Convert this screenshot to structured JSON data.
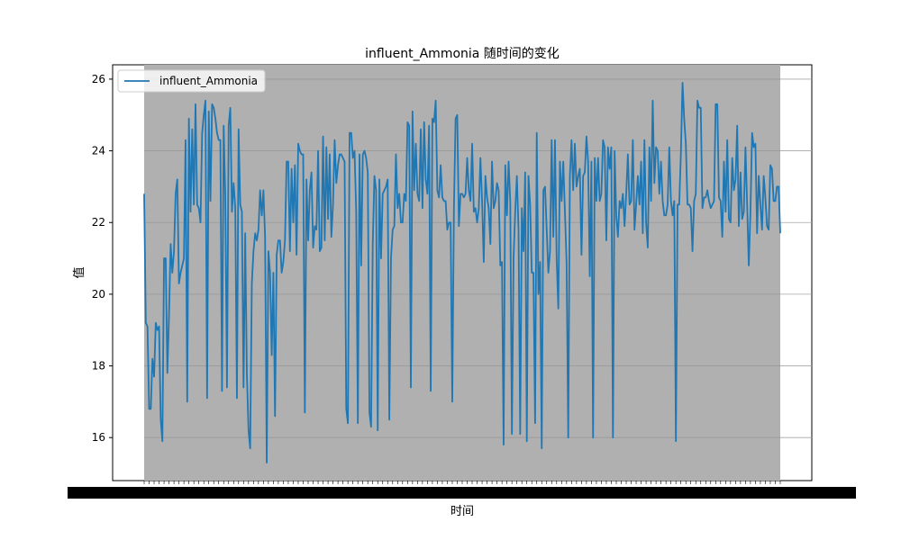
{
  "chart_data": {
    "type": "line",
    "title": "influent_Ammonia 随时间的变化",
    "xlabel": "时间",
    "ylabel": "值",
    "ylim": [
      14.8,
      26.4
    ],
    "yticks": [
      16,
      18,
      20,
      22,
      24,
      26
    ],
    "grid": true,
    "legend": {
      "placement": "top-left",
      "entries": [
        "influent_Ammonia"
      ]
    },
    "colors": {
      "line": "#1f77b4",
      "plot_bg": "#b0b0b0",
      "grid": "#ffffff"
    },
    "series": [
      {
        "name": "influent_Ammonia",
        "values": [
          22.8,
          19.2,
          19.1,
          16.8,
          16.8,
          18.2,
          17.7,
          19.2,
          19.0,
          19.1,
          16.5,
          15.9,
          21.0,
          21.0,
          17.8,
          19.4,
          21.4,
          20.6,
          21.2,
          22.8,
          23.2,
          20.3,
          20.6,
          20.8,
          21.0,
          24.3,
          17.0,
          24.9,
          22.3,
          24.6,
          22.5,
          25.3,
          22.5,
          22.4,
          22.0,
          24.5,
          25.0,
          25.4,
          17.1,
          25.1,
          22.6,
          25.3,
          25.2,
          24.9,
          24.5,
          24.3,
          24.3,
          17.3,
          24.7,
          22.7,
          17.4,
          24.7,
          25.2,
          22.3,
          23.1,
          22.4,
          17.1,
          24.6,
          22.5,
          22.3,
          17.4,
          21.7,
          17.8,
          16.2,
          15.7,
          20.3,
          21.2,
          21.7,
          21.5,
          21.8,
          22.9,
          22.2,
          22.9,
          21.6,
          15.3,
          21.2,
          20.6,
          18.3,
          20.6,
          16.6,
          21.1,
          21.5,
          21.5,
          20.6,
          20.9,
          21.5,
          23.7,
          23.7,
          21.2,
          23.5,
          22.0,
          23.6,
          21.1,
          24.2,
          24.0,
          23.9,
          23.9,
          16.7,
          23.2,
          21.5,
          22.9,
          23.4,
          21.3,
          21.9,
          21.8,
          24.0,
          21.2,
          21.3,
          24.4,
          21.5,
          24.1,
          22.1,
          23.9,
          21.6,
          22.5,
          24.3,
          23.1,
          23.6,
          23.9,
          23.9,
          23.8,
          23.7,
          16.8,
          16.4,
          24.5,
          24.5,
          23.8,
          24.0,
          22.3,
          16.4,
          23.9,
          20.8,
          23.9,
          24.0,
          23.8,
          23.4,
          16.7,
          16.3,
          21.4,
          23.3,
          22.9,
          16.2,
          23.2,
          21.0,
          22.8,
          22.9,
          23.0,
          23.2,
          16.5,
          21.0,
          21.8,
          21.9,
          23.9,
          22.4,
          22.8,
          22.0,
          22.0,
          22.8,
          22.6,
          24.8,
          24.7,
          17.4,
          25.1,
          22.9,
          24.2,
          22.8,
          22.6,
          24.6,
          22.4,
          24.8,
          23.2,
          22.8,
          24.7,
          17.3,
          24.9,
          24.8,
          25.4,
          22.9,
          22.7,
          23.6,
          22.7,
          22.6,
          22.6,
          21.8,
          22.0,
          22.0,
          17.0,
          22.4,
          24.9,
          25.0,
          21.9,
          22.8,
          22.8,
          22.7,
          22.8,
          23.8,
          22.9,
          22.6,
          24.2,
          22.3,
          22.4,
          22.0,
          22.4,
          23.8,
          22.6,
          20.9,
          23.3,
          22.7,
          22.4,
          21.4,
          23.7,
          22.4,
          22.6,
          23.1,
          22.9,
          20.8,
          20.9,
          15.8,
          23.6,
          22.2,
          23.7,
          22.6,
          16.1,
          21.0,
          22.3,
          23.3,
          21.8,
          16.1,
          22.4,
          21.2,
          23.4,
          15.9,
          23.3,
          22.5,
          20.6,
          20.6,
          16.4,
          24.5,
          20.0,
          20.9,
          15.7,
          22.9,
          23.0,
          21.8,
          20.6,
          21.2,
          24.3,
          21.6,
          24.3,
          21.0,
          19.6,
          23.7,
          22.6,
          23.7,
          22.3,
          20.9,
          16.0,
          23.3,
          24.3,
          22.9,
          24.2,
          23.0,
          23.3,
          23.5,
          21.1,
          23.3,
          23.4,
          24.4,
          23.7,
          20.5,
          23.7,
          16.0,
          23.8,
          22.6,
          23.8,
          22.6,
          22.8,
          24.3,
          24.1,
          21.5,
          24.1,
          23.5,
          24.1,
          16.0,
          24.0,
          22.2,
          21.6,
          22.6,
          22.4,
          22.8,
          21.9,
          22.8,
          23.9,
          22.5,
          22.6,
          24.3,
          21.8,
          22.5,
          23.3,
          22.5,
          23.7,
          21.7,
          24.3,
          22.0,
          21.3,
          24.1,
          22.6,
          25.4,
          23.1,
          24.1,
          24.0,
          22.8,
          23.7,
          22.6,
          22.2,
          22.2,
          22.5,
          24.1,
          22.6,
          22.2,
          22.6,
          15.9,
          22.5,
          22.5,
          23.9,
          25.9,
          24.9,
          24.2,
          22.5,
          22.5,
          22.4,
          21.2,
          22.6,
          22.8,
          25.4,
          25.2,
          25.2,
          22.4,
          22.7,
          22.7,
          22.9,
          22.6,
          22.4,
          22.5,
          22.6,
          25.3,
          25.3,
          22.7,
          22.6,
          21.6,
          23.7,
          22.3,
          24.3,
          22.1,
          22.0,
          23.8,
          22.9,
          23.2,
          24.7,
          21.9,
          23.4,
          22.1,
          22.3,
          24.1,
          22.5,
          20.8,
          22.3,
          24.5,
          24.1,
          24.2,
          21.7,
          23.3,
          22.5,
          21.8,
          23.3,
          22.7,
          21.9,
          21.8,
          23.6,
          23.5,
          22.6,
          22.6,
          23.0,
          23.0,
          21.7
        ]
      }
    ]
  }
}
